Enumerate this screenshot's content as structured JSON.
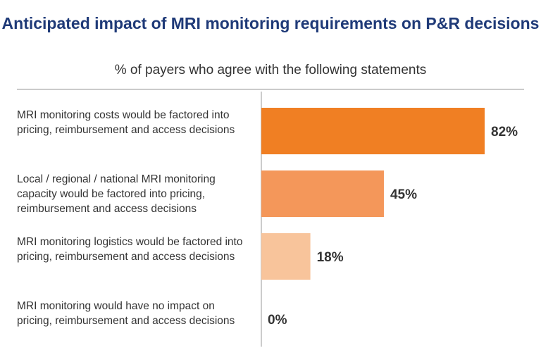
{
  "chart_data": {
    "type": "bar",
    "orientation": "horizontal",
    "title": "Anticipated impact of MRI monitoring requirements on P&R decisions",
    "subtitle": "% of payers who agree with the following statements",
    "categories": [
      "MRI monitoring costs would be factored into pricing, reimbursement and access decisions",
      "Local / regional / national MRI monitoring capacity would be factored into pricing, reimbursement and access decisions",
      "MRI monitoring logistics would be factored into pricing, reimbursement and access decisions",
      "MRI monitoring would have no impact on pricing, reimbursement and access decisions"
    ],
    "values": [
      82,
      45,
      18,
      0
    ],
    "value_labels": [
      "82%",
      "45%",
      "18%",
      "0%"
    ],
    "colors": [
      "#f07f23",
      "#f4975a",
      "#f8c49b",
      "#fbe0cc"
    ],
    "xlabel": "",
    "ylabel": "",
    "xlim": [
      0,
      100
    ],
    "grid": false,
    "legend": "none"
  }
}
